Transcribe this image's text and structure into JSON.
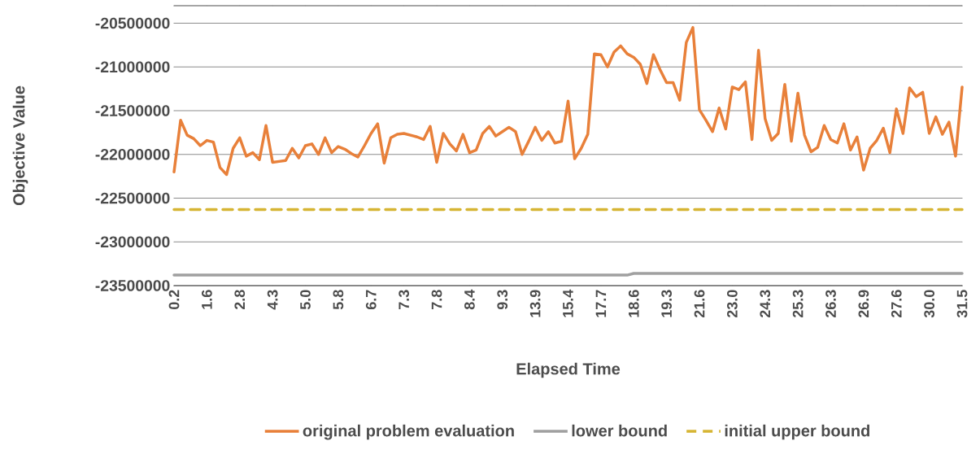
{
  "chart_data": {
    "type": "line",
    "xlabel": "Elapsed Time",
    "ylabel": "Objective Value",
    "categories": [
      "0.2",
      null,
      null,
      null,
      null,
      "1.6",
      null,
      null,
      null,
      null,
      "2.8",
      null,
      null,
      null,
      null,
      "4.3",
      null,
      null,
      null,
      null,
      "5.0",
      null,
      null,
      null,
      null,
      "5.8",
      null,
      null,
      null,
      null,
      "6.7",
      null,
      null,
      null,
      null,
      "7.3",
      null,
      null,
      null,
      null,
      "7.8",
      null,
      null,
      null,
      null,
      "8.4",
      null,
      null,
      null,
      null,
      "9.3",
      null,
      null,
      null,
      null,
      "13.9",
      null,
      null,
      null,
      null,
      "15.4",
      null,
      null,
      null,
      null,
      "17.7",
      null,
      null,
      null,
      null,
      "18.6",
      null,
      null,
      null,
      null,
      "19.3",
      null,
      null,
      null,
      null,
      "21.6",
      null,
      null,
      null,
      null,
      "23.0",
      null,
      null,
      null,
      null,
      "24.3",
      null,
      null,
      null,
      null,
      "25.3",
      null,
      null,
      null,
      null,
      "26.3",
      null,
      null,
      null,
      null,
      "26.9",
      null,
      null,
      null,
      null,
      "27.6",
      null,
      null,
      null,
      null,
      "30.0",
      null,
      null,
      null,
      null,
      "31.5"
    ],
    "series": [
      {
        "name": "original problem evaluation",
        "color": "#e8803a",
        "line_style": "solid",
        "values": [
          -22200000,
          -21610000,
          -21780000,
          -21820000,
          -21900000,
          -21840000,
          -21860000,
          -22150000,
          -22230000,
          -21930000,
          -21810000,
          -22020000,
          -21980000,
          -22060000,
          -21670000,
          -22090000,
          -22080000,
          -22070000,
          -21930000,
          -22040000,
          -21900000,
          -21880000,
          -22000000,
          -21810000,
          -21980000,
          -21910000,
          -21940000,
          -21990000,
          -22030000,
          -21900000,
          -21760000,
          -21650000,
          -22100000,
          -21810000,
          -21770000,
          -21760000,
          -21780000,
          -21800000,
          -21830000,
          -21680000,
          -22090000,
          -21760000,
          -21880000,
          -21960000,
          -21770000,
          -21980000,
          -21950000,
          -21760000,
          -21680000,
          -21790000,
          -21740000,
          -21690000,
          -21740000,
          -22000000,
          -21850000,
          -21690000,
          -21840000,
          -21740000,
          -21870000,
          -21850000,
          -21390000,
          -22050000,
          -21930000,
          -21770000,
          -20850000,
          -20860000,
          -21000000,
          -20830000,
          -20760000,
          -20850000,
          -20890000,
          -20970000,
          -21190000,
          -20860000,
          -21030000,
          -21180000,
          -21180000,
          -21380000,
          -20720000,
          -20550000,
          -21490000,
          -21610000,
          -21740000,
          -21470000,
          -21710000,
          -21230000,
          -21260000,
          -21170000,
          -21830000,
          -20810000,
          -21590000,
          -21840000,
          -21760000,
          -21200000,
          -21850000,
          -21300000,
          -21780000,
          -21970000,
          -21920000,
          -21670000,
          -21830000,
          -21870000,
          -21650000,
          -21950000,
          -21800000,
          -22180000,
          -21930000,
          -21840000,
          -21700000,
          -21980000,
          -21480000,
          -21760000,
          -21240000,
          -21340000,
          -21290000,
          -21760000,
          -21570000,
          -21770000,
          -21630000,
          -22020000,
          -21230000
        ]
      },
      {
        "name": "lower bound",
        "color": "#a0a0a0",
        "line_style": "solid",
        "values": [
          -23380000,
          -23380000,
          -23380000,
          -23380000,
          -23380000,
          -23380000,
          -23380000,
          -23380000,
          -23380000,
          -23380000,
          -23380000,
          -23380000,
          -23380000,
          -23380000,
          -23380000,
          -23380000,
          -23380000,
          -23380000,
          -23380000,
          -23380000,
          -23380000,
          -23380000,
          -23380000,
          -23380000,
          -23380000,
          -23380000,
          -23380000,
          -23380000,
          -23380000,
          -23380000,
          -23380000,
          -23380000,
          -23380000,
          -23380000,
          -23380000,
          -23380000,
          -23380000,
          -23380000,
          -23380000,
          -23380000,
          -23380000,
          -23380000,
          -23380000,
          -23380000,
          -23380000,
          -23380000,
          -23380000,
          -23380000,
          -23380000,
          -23380000,
          -23380000,
          -23380000,
          -23380000,
          -23380000,
          -23380000,
          -23380000,
          -23380000,
          -23380000,
          -23380000,
          -23380000,
          -23380000,
          -23380000,
          -23380000,
          -23380000,
          -23380000,
          -23380000,
          -23380000,
          -23380000,
          -23380000,
          -23380000,
          -23360000,
          -23360000,
          -23360000,
          -23360000,
          -23360000,
          -23360000,
          -23360000,
          -23360000,
          -23360000,
          -23360000,
          -23360000,
          -23360000,
          -23360000,
          -23360000,
          -23360000,
          -23360000,
          -23360000,
          -23360000,
          -23360000,
          -23360000,
          -23360000,
          -23360000,
          -23360000,
          -23360000,
          -23360000,
          -23360000,
          -23360000,
          -23360000,
          -23360000,
          -23360000,
          -23360000,
          -23360000,
          -23360000,
          -23360000,
          -23360000,
          -23360000,
          -23360000,
          -23360000,
          -23360000,
          -23360000,
          -23360000,
          -23360000,
          -23360000,
          -23360000,
          -23360000,
          -23360000,
          -23360000,
          -23360000,
          -23360000,
          -23360000,
          -23360000
        ]
      },
      {
        "name": "initial upper bound",
        "color": "#d6b534",
        "line_style": "dashed",
        "values": [
          -22630000,
          -22630000,
          -22630000,
          -22630000,
          -22630000,
          -22630000,
          -22630000,
          -22630000,
          -22630000,
          -22630000,
          -22630000,
          -22630000,
          -22630000,
          -22630000,
          -22630000,
          -22630000,
          -22630000,
          -22630000,
          -22630000,
          -22630000,
          -22630000,
          -22630000,
          -22630000,
          -22630000,
          -22630000,
          -22630000,
          -22630000,
          -22630000,
          -22630000,
          -22630000,
          -22630000,
          -22630000,
          -22630000,
          -22630000,
          -22630000,
          -22630000,
          -22630000,
          -22630000,
          -22630000,
          -22630000,
          -22630000,
          -22630000,
          -22630000,
          -22630000,
          -22630000,
          -22630000,
          -22630000,
          -22630000,
          -22630000,
          -22630000,
          -22630000,
          -22630000,
          -22630000,
          -22630000,
          -22630000,
          -22630000,
          -22630000,
          -22630000,
          -22630000,
          -22630000,
          -22630000,
          -22630000,
          -22630000,
          -22630000,
          -22630000,
          -22630000,
          -22630000,
          -22630000,
          -22630000,
          -22630000,
          -22630000,
          -22630000,
          -22630000,
          -22630000,
          -22630000,
          -22630000,
          -22630000,
          -22630000,
          -22630000,
          -22630000,
          -22630000,
          -22630000,
          -22630000,
          -22630000,
          -22630000,
          -22630000,
          -22630000,
          -22630000,
          -22630000,
          -22630000,
          -22630000,
          -22630000,
          -22630000,
          -22630000,
          -22630000,
          -22630000,
          -22630000,
          -22630000,
          -22630000,
          -22630000,
          -22630000,
          -22630000,
          -22630000,
          -22630000,
          -22630000,
          -22630000,
          -22630000,
          -22630000,
          -22630000,
          -22630000,
          -22630000,
          -22630000,
          -22630000,
          -22630000,
          -22630000,
          -22630000,
          -22630000,
          -22630000,
          -22630000,
          -22630000,
          -22630000
        ]
      }
    ],
    "ylim": [
      -23500000,
      -20300000
    ],
    "yticks": [
      -23500000,
      -23000000,
      -22500000,
      -22000000,
      -21500000,
      -21000000,
      -20500000
    ],
    "grid": "y",
    "legend": "bottom",
    "marker": "none"
  }
}
